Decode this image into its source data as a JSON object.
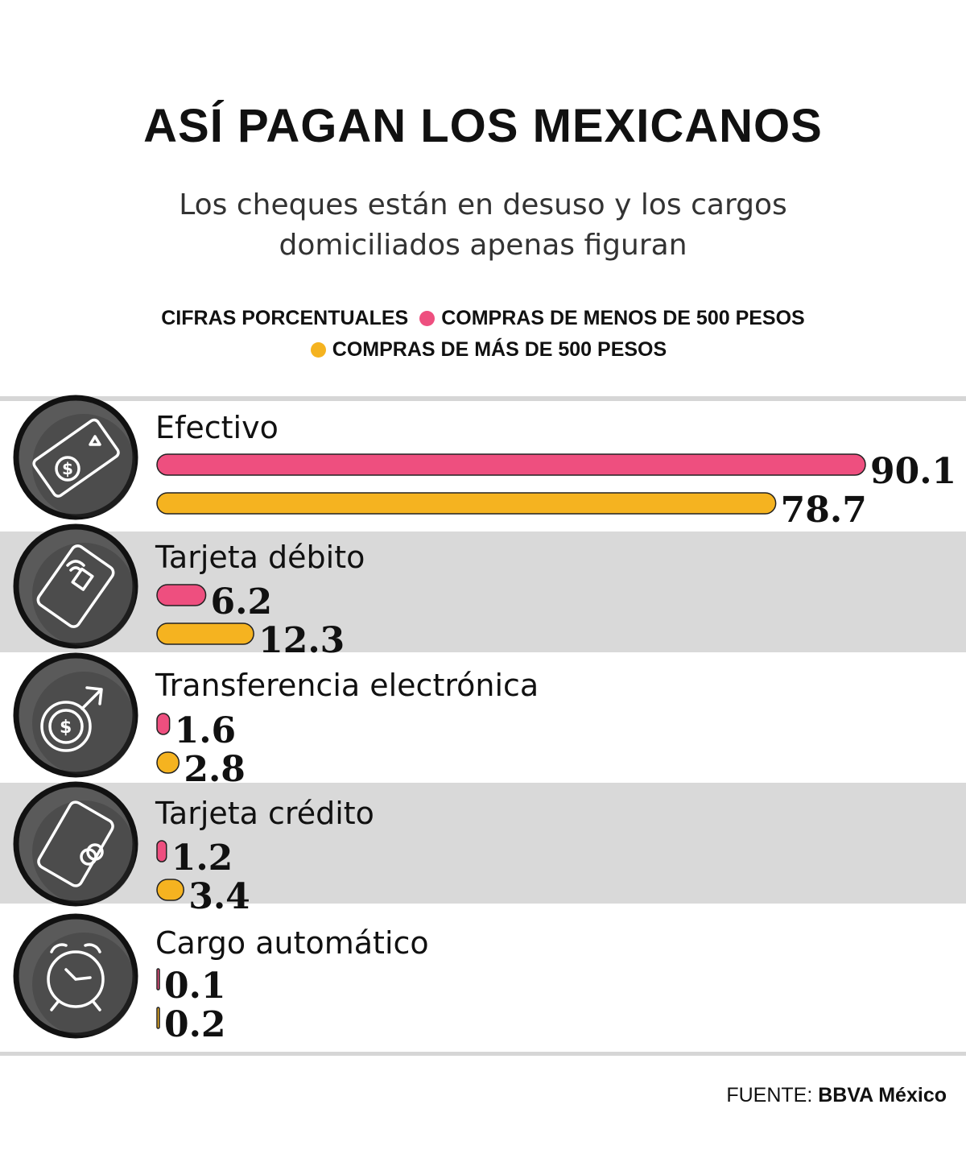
{
  "title": "ASÍ PAGAN LOS MEXICANOS",
  "subtitle": "Los cheques están en desuso y los cargos domiciliados apenas figuran",
  "legend": {
    "note": "CIFRAS PORCENTUALES",
    "items": [
      {
        "label": "COMPRAS DE MENOS DE 500 PESOS",
        "color": "#ee4f7f"
      },
      {
        "label": "COMPRAS DE MÁS DE 500 PESOS",
        "color": "#f5b320"
      }
    ]
  },
  "source": {
    "prefix": "FUENTE:",
    "name": "BBVA México"
  },
  "chart_data": {
    "type": "bar",
    "orientation": "horizontal",
    "categories": [
      "Efectivo",
      "Tarjeta débito",
      "Transferencia electrónica",
      "Tarjeta crédito",
      "Cargo automático"
    ],
    "icons": [
      "banknote-icon",
      "debit-card-icon",
      "transfer-coin-icon",
      "credit-card-icon",
      "alarm-clock-icon"
    ],
    "series": [
      {
        "name": "COMPRAS DE MENOS DE 500 PESOS",
        "color": "#ee4f7f",
        "values": [
          90.1,
          6.2,
          1.6,
          1.2,
          0.1
        ]
      },
      {
        "name": "COMPRAS DE MÁS DE 500 PESOS",
        "color": "#f5b320",
        "values": [
          78.7,
          12.3,
          2.8,
          3.4,
          0.2
        ]
      }
    ],
    "value_labels": [
      [
        "90.1",
        "78.7"
      ],
      [
        "6.2",
        "12.3"
      ],
      [
        "1.6",
        "2.8"
      ],
      [
        "1.2",
        "3.4"
      ],
      [
        "0.1",
        "0.2"
      ]
    ],
    "xlim": [
      0,
      100
    ]
  }
}
